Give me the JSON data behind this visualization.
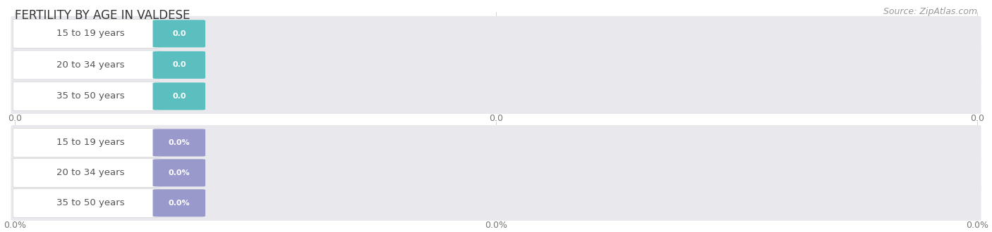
{
  "title": "FERTILITY BY AGE IN VALDESE",
  "source": "Source: ZipAtlas.com",
  "top_section": {
    "categories": [
      "15 to 19 years",
      "20 to 34 years",
      "35 to 50 years"
    ],
    "values": [
      0.0,
      0.0,
      0.0
    ],
    "value_labels": [
      "0.0",
      "0.0",
      "0.0"
    ],
    "bar_color": "#5bbfc0",
    "bar_bg_color": "#e8e8ed",
    "label_bg_color": "#ffffff",
    "label_border_color": "#cccccc",
    "label_text_color": "#555555",
    "value_text_color": "#ffffff"
  },
  "bottom_section": {
    "categories": [
      "15 to 19 years",
      "20 to 34 years",
      "35 to 50 years"
    ],
    "values": [
      0.0,
      0.0,
      0.0
    ],
    "value_labels": [
      "0.0%",
      "0.0%",
      "0.0%"
    ],
    "bar_color": "#9999cc",
    "bar_bg_color": "#e8e8ed",
    "label_bg_color": "#ffffff",
    "label_border_color": "#cccccc",
    "label_text_color": "#555555",
    "value_text_color": "#ffffff"
  },
  "top_tick_labels": [
    "0.0",
    "0.0",
    "0.0"
  ],
  "bottom_tick_labels": [
    "0.0%",
    "0.0%",
    "0.0%"
  ],
  "title_fontsize": 12,
  "label_fontsize": 9.5,
  "source_fontsize": 9,
  "tick_fontsize": 9,
  "value_fontsize": 8,
  "background_color": "#ffffff"
}
